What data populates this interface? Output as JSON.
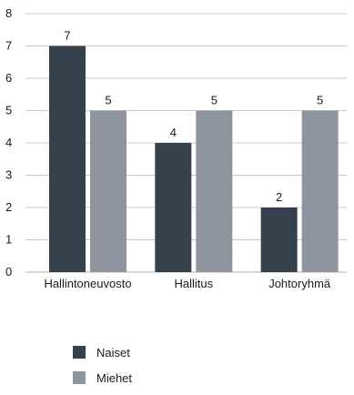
{
  "chart_data": {
    "type": "bar",
    "categories": [
      "Hallintoneuvosto",
      "Hallitus",
      "Johtoryhmä"
    ],
    "series": [
      {
        "name": "Naiset",
        "values": [
          7,
          4,
          2
        ],
        "color": "#36414e"
      },
      {
        "name": "Miehet",
        "values": [
          5,
          5,
          5
        ],
        "color": "#8f959e"
      }
    ],
    "ylim": [
      0,
      8
    ],
    "yticks": [
      0,
      1,
      2,
      3,
      4,
      5,
      6,
      7,
      8
    ],
    "grid": true,
    "legend_position": "bottom-left"
  }
}
